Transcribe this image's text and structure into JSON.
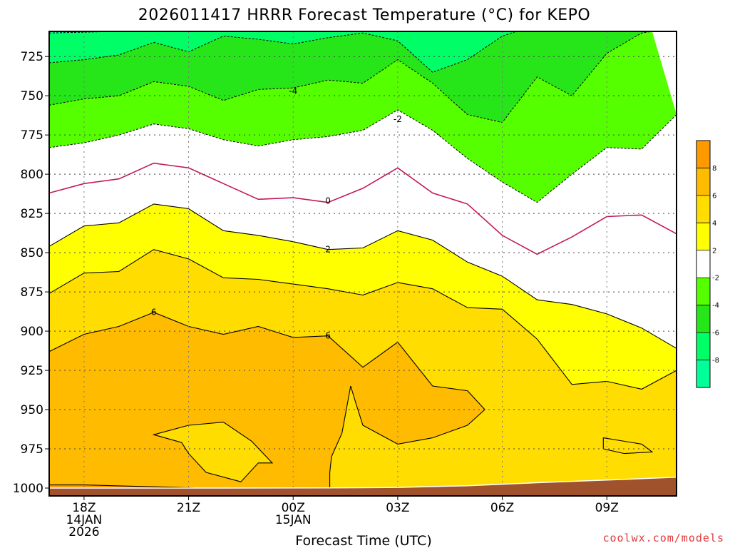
{
  "chart_data": {
    "type": "contour",
    "title": "2026011417 HRRR Forecast Temperature (°C) for KEPO",
    "xlabel": "Forecast Time (UTC)",
    "ylabel": "",
    "y_axis": {
      "quantity": "pressure (hPa)",
      "inverted": true,
      "range": [
        1005,
        709
      ],
      "ticks": [
        725,
        750,
        775,
        800,
        825,
        850,
        875,
        900,
        925,
        950,
        975,
        1000
      ]
    },
    "x_axis": {
      "range_hours": [
        -1,
        17
      ],
      "ticks": [
        {
          "hour": 0,
          "lines": [
            "18Z",
            "14JAN",
            "2026"
          ]
        },
        {
          "hour": 3,
          "lines": [
            "21Z"
          ]
        },
        {
          "hour": 6,
          "lines": [
            "00Z",
            "15JAN"
          ]
        },
        {
          "hour": 9,
          "lines": [
            "03Z"
          ]
        },
        {
          "hour": 12,
          "lines": [
            "06Z"
          ]
        },
        {
          "hour": 15,
          "lines": [
            "09Z"
          ]
        }
      ]
    },
    "grid": true,
    "fill_bands": [
      {
        "range": [
          -10,
          -8
        ],
        "color": "#00ff99"
      },
      {
        "range": [
          -8,
          -6
        ],
        "color": "#00ff66"
      },
      {
        "range": [
          -6,
          -4
        ],
        "color": "#26e61a"
      },
      {
        "range": [
          -4,
          -2
        ],
        "color": "#55ff00"
      },
      {
        "range": [
          -2,
          2
        ],
        "color": "#ffffff"
      },
      {
        "range": [
          2,
          4
        ],
        "color": "#ffff00"
      },
      {
        "range": [
          4,
          6
        ],
        "color": "#ffdd00"
      },
      {
        "range": [
          6,
          8
        ],
        "color": "#ffbb00"
      },
      {
        "range": [
          8,
          10
        ],
        "color": "#ff9900"
      }
    ],
    "ground_color": "#a0522d",
    "isotherms": {
      "minus8": [
        [
          -1,
          710
        ],
        [
          1,
          709
        ],
        [
          4,
          709
        ],
        [
          6,
          709
        ],
        [
          9,
          709
        ],
        [
          11,
          709
        ],
        [
          11.2,
          709
        ]
      ],
      "minus6": [
        [
          -1,
          729
        ],
        [
          0,
          727
        ],
        [
          1,
          724
        ],
        [
          2,
          716
        ],
        [
          3,
          722
        ],
        [
          4,
          712
        ],
        [
          5,
          714
        ],
        [
          6,
          717
        ],
        [
          7,
          713
        ],
        [
          8,
          710
        ],
        [
          9,
          715
        ],
        [
          10,
          735
        ],
        [
          11,
          727
        ],
        [
          12,
          712
        ],
        [
          12.4,
          709
        ]
      ],
      "minus4": [
        [
          -1,
          756
        ],
        [
          0,
          752
        ],
        [
          1,
          750
        ],
        [
          2,
          741
        ],
        [
          3,
          744
        ],
        [
          4,
          753
        ],
        [
          5,
          746
        ],
        [
          6,
          745
        ],
        [
          7,
          740
        ],
        [
          8,
          742
        ],
        [
          9,
          727
        ],
        [
          10,
          742
        ],
        [
          11,
          762
        ],
        [
          12,
          767
        ],
        [
          13,
          738
        ],
        [
          14,
          750
        ],
        [
          15,
          723
        ],
        [
          16,
          710
        ],
        [
          16.3,
          709
        ]
      ],
      "minus2": [
        [
          -1,
          783
        ],
        [
          0,
          780
        ],
        [
          1,
          775
        ],
        [
          2,
          768
        ],
        [
          3,
          771
        ],
        [
          4,
          778
        ],
        [
          5,
          782
        ],
        [
          6,
          778
        ],
        [
          7,
          776
        ],
        [
          8,
          772
        ],
        [
          9,
          759
        ],
        [
          10,
          772
        ],
        [
          11,
          790
        ],
        [
          12,
          805
        ],
        [
          13,
          818
        ],
        [
          14,
          800
        ],
        [
          15,
          783
        ],
        [
          16,
          784
        ],
        [
          17,
          762
        ]
      ],
      "zero": [
        [
          -1,
          812
        ],
        [
          0,
          806
        ],
        [
          1,
          803
        ],
        [
          2,
          793
        ],
        [
          3,
          796
        ],
        [
          4,
          806
        ],
        [
          5,
          816
        ],
        [
          6,
          815
        ],
        [
          7,
          818
        ],
        [
          8,
          809
        ],
        [
          9,
          796
        ],
        [
          10,
          812
        ],
        [
          11,
          819
        ],
        [
          12,
          839
        ],
        [
          13,
          851
        ],
        [
          14,
          840
        ],
        [
          15,
          827
        ],
        [
          16,
          826
        ],
        [
          17,
          838
        ]
      ],
      "two": [
        [
          -1,
          846
        ],
        [
          0,
          833
        ],
        [
          1,
          831
        ],
        [
          2,
          819
        ],
        [
          3,
          822
        ],
        [
          4,
          836
        ],
        [
          5,
          839
        ],
        [
          6,
          843
        ],
        [
          7,
          848
        ],
        [
          8,
          847
        ],
        [
          9,
          836
        ],
        [
          10,
          842
        ],
        [
          11,
          856
        ],
        [
          12,
          865
        ],
        [
          13,
          880
        ],
        [
          14,
          883
        ],
        [
          15,
          889
        ],
        [
          16,
          898
        ],
        [
          17,
          911
        ]
      ],
      "four": [
        [
          -1,
          876
        ],
        [
          0,
          863
        ],
        [
          1,
          862
        ],
        [
          2,
          848
        ],
        [
          3,
          854
        ],
        [
          4,
          866
        ],
        [
          5,
          867
        ],
        [
          6,
          870
        ],
        [
          7,
          873
        ],
        [
          8,
          877
        ],
        [
          9,
          869
        ],
        [
          10,
          873
        ],
        [
          11,
          885
        ],
        [
          12,
          886
        ],
        [
          13,
          905
        ],
        [
          14,
          934
        ],
        [
          15,
          932
        ],
        [
          16,
          937
        ],
        [
          17,
          925
        ]
      ],
      "six": [
        [
          -1,
          913
        ],
        [
          0,
          902
        ],
        [
          1,
          897
        ],
        [
          2,
          888
        ],
        [
          3,
          897
        ],
        [
          4,
          902
        ],
        [
          5,
          897
        ],
        [
          6,
          904
        ],
        [
          7,
          903
        ],
        [
          8,
          923
        ],
        [
          9,
          907
        ],
        [
          10,
          935
        ],
        [
          11,
          938
        ],
        [
          11.5,
          950
        ],
        [
          11,
          960
        ],
        [
          10,
          968
        ],
        [
          9,
          972
        ],
        [
          8,
          960
        ],
        [
          7.8,
          946
        ],
        [
          7.65,
          935
        ],
        [
          7.4,
          965
        ],
        [
          7.1,
          980
        ],
        [
          7.05,
          990
        ],
        [
          7.05,
          1003
        ]
      ]
    },
    "isotherm_pockets": [
      [
        [
          2,
          966
        ],
        [
          3,
          960
        ],
        [
          4,
          958
        ],
        [
          4.8,
          970
        ],
        [
          5.4,
          984
        ],
        [
          5,
          984
        ],
        [
          4.5,
          996
        ],
        [
          3.5,
          990
        ],
        [
          3,
          978
        ],
        [
          2.8,
          971
        ],
        [
          2,
          966
        ]
      ],
      [
        [
          14.9,
          968
        ],
        [
          16,
          972
        ],
        [
          16.3,
          977
        ],
        [
          15.5,
          978
        ],
        [
          14.9,
          975
        ],
        [
          14.9,
          968
        ]
      ]
    ],
    "surface_boundary": [
      [
        -1,
        998
      ],
      [
        0,
        998
      ],
      [
        1,
        998.6
      ],
      [
        2,
        999.2
      ],
      [
        3,
        999.8
      ],
      [
        3.5,
        1000.4
      ]
    ],
    "ground_top": [
      [
        -1,
        1000
      ],
      [
        4,
        1000
      ],
      [
        7,
        999.9
      ],
      [
        9,
        999.6
      ],
      [
        11,
        998.5
      ],
      [
        13,
        996.6
      ],
      [
        15,
        994.9
      ],
      [
        17,
        993.1
      ]
    ],
    "contour_labels": [
      {
        "text": "-4",
        "hour": 6,
        "p": 747
      },
      {
        "text": "-2",
        "hour": 9,
        "p": 765
      },
      {
        "text": "0",
        "hour": 7,
        "p": 817
      },
      {
        "text": "2",
        "hour": 7,
        "p": 848
      },
      {
        "text": "6",
        "hour": 2,
        "p": 888
      },
      {
        "text": "6",
        "hour": 7,
        "p": 903
      }
    ],
    "colorbar": {
      "colors": [
        "#00ff99",
        "#00ff66",
        "#26e61a",
        "#55ff00",
        "#ffffff",
        "#ffff00",
        "#ffdd00",
        "#ffbb00",
        "#ff9900"
      ],
      "labels": [
        "-8",
        "-6",
        "-4",
        "-2",
        "2",
        "4",
        "6",
        "8"
      ]
    }
  },
  "credit": "coolwx.com/models"
}
